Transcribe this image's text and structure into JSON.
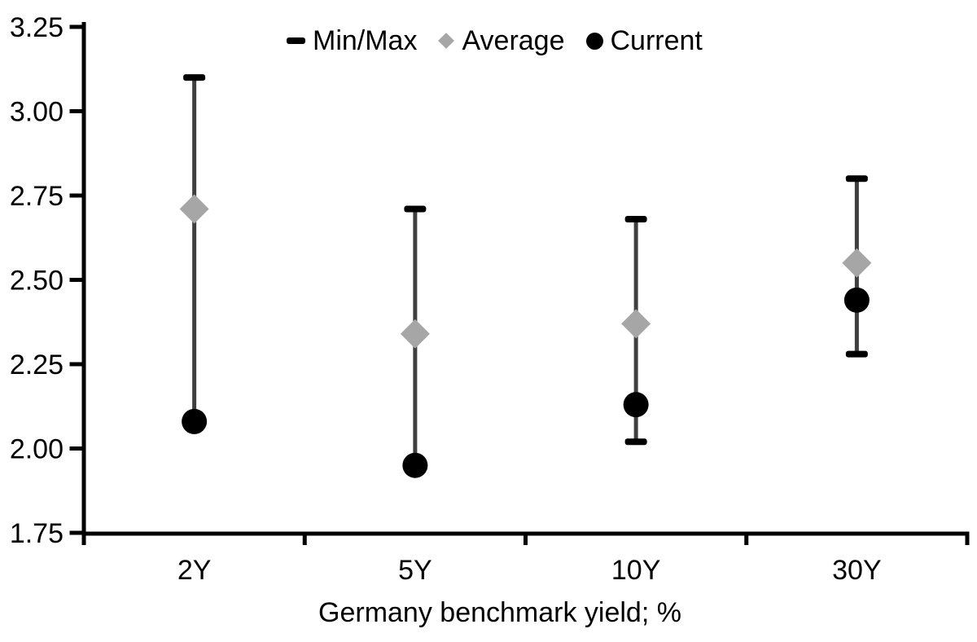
{
  "chart_data": {
    "type": "scatter",
    "subtype": "min-max-range-dot-plot",
    "title": "",
    "xlabel": "Germany benchmark yield; %",
    "ylabel": "",
    "ylim": [
      1.75,
      3.25
    ],
    "ytick_step": 0.25,
    "yticks": [
      "1.75",
      "2.00",
      "2.25",
      "2.50",
      "2.75",
      "3.00",
      "3.25"
    ],
    "grid": false,
    "legend_position": "top-center",
    "categories": [
      "2Y",
      "5Y",
      "10Y",
      "30Y"
    ],
    "series": [
      {
        "name": "Min/Max",
        "marker": "cap-dash",
        "min": [
          2.08,
          1.95,
          2.02,
          2.28
        ],
        "max": [
          3.1,
          2.71,
          2.68,
          2.8
        ]
      },
      {
        "name": "Average",
        "marker": "diamond",
        "values": [
          2.71,
          2.34,
          2.37,
          2.55
        ]
      },
      {
        "name": "Current",
        "marker": "circle",
        "values": [
          2.08,
          1.95,
          2.13,
          2.44
        ]
      }
    ]
  },
  "legend": {
    "items": [
      {
        "label": "Min/Max",
        "marker": "dash"
      },
      {
        "label": "Average",
        "marker": "diamond"
      },
      {
        "label": "Current",
        "marker": "circle"
      }
    ]
  },
  "colors": {
    "text": "#000000",
    "axis": "#000000",
    "range_line": "#3f3f3f",
    "cap": "#000000",
    "average": "#a6a6a6",
    "current": "#000000",
    "background": "#ffffff"
  }
}
